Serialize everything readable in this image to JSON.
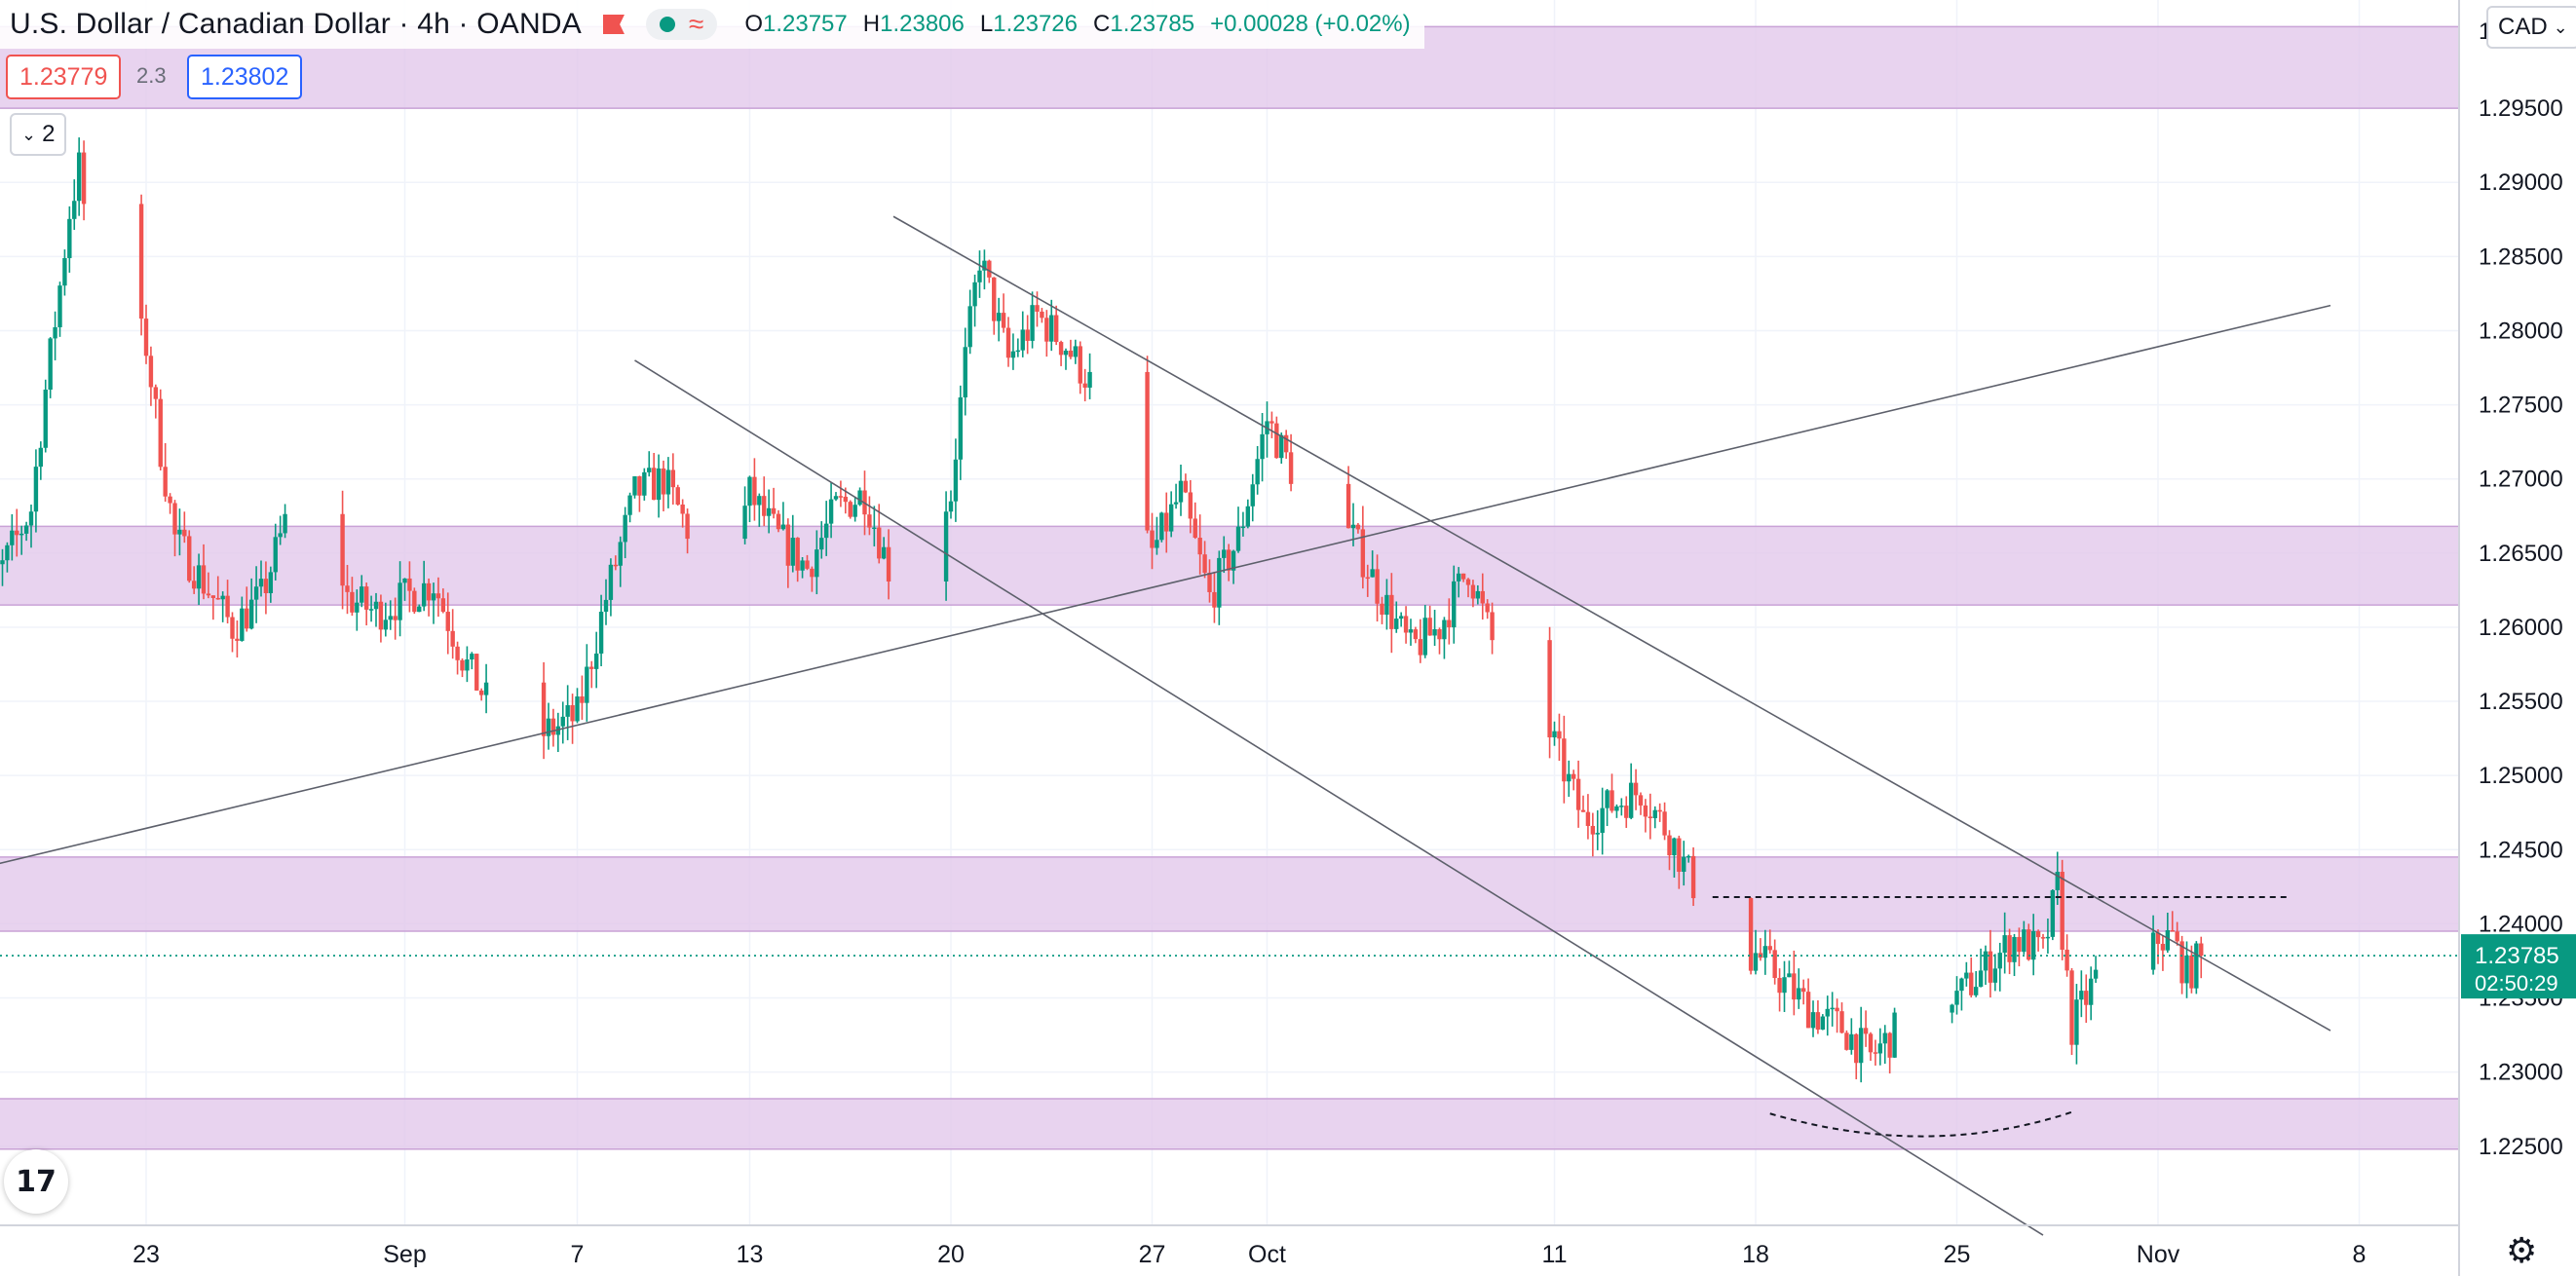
{
  "header": {
    "title": "U.S. Dollar / Canadian Dollar · 4h · OANDA",
    "ohlc": [
      {
        "key": "O",
        "value": "1.23757"
      },
      {
        "key": "H",
        "value": "1.23806"
      },
      {
        "key": "L",
        "value": "1.23726"
      },
      {
        "key": "C",
        "value": "1.23785"
      }
    ],
    "change": "+0.00028 (+0.02%)",
    "sell_price": "1.23779",
    "spread": "2.3",
    "buy_price": "1.23802",
    "indicators_count": "2",
    "currency": "CAD",
    "icons": {
      "flag": "flag-icon",
      "status": "dot-icon",
      "toggle": "wave-icon",
      "collapse": "chevron-down-icon",
      "logo": "tradingview-logo",
      "settings": "gear-icon"
    }
  },
  "colors": {
    "up": "#089981",
    "down": "#f05350",
    "zone": "#e1c6ea",
    "grid": "#f0f3fa",
    "trend": "#5d606b"
  },
  "current": {
    "price_label": "1.23785",
    "countdown": "02:50:29"
  },
  "chart_data": {
    "type": "candlestick",
    "symbol": "USDCAD",
    "interval": "4h",
    "y_axis": {
      "ticks": [
        "1.22500",
        "1.23000",
        "1.23500",
        "1.24000",
        "1.24500",
        "1.25000",
        "1.25500",
        "1.26000",
        "1.26500",
        "1.27000",
        "1.27500",
        "1.28000",
        "1.28500",
        "1.29000",
        "1.29500"
      ],
      "partial_top_tick": "1.",
      "range": [
        1.2194,
        1.3023
      ]
    },
    "x_axis": {
      "ticks": [
        "23",
        "Sep",
        "7",
        "13",
        "20",
        "27",
        "Oct",
        "11",
        "18",
        "25",
        "Nov",
        "8"
      ],
      "tick_dates": [
        "2021-08-23",
        "2021-09-01",
        "2021-09-07",
        "2021-09-13",
        "2021-09-20",
        "2021-09-27",
        "2021-10-01",
        "2021-10-11",
        "2021-10-18",
        "2021-10-25",
        "2021-11-01",
        "2021-11-08"
      ]
    },
    "keypoints": [
      [
        "2021-08-17 00:00",
        1.262
      ],
      [
        "2021-08-18 00:00",
        1.264
      ],
      [
        "2021-08-19 00:00",
        1.268
      ],
      [
        "2021-08-19 12:00",
        1.276
      ],
      [
        "2021-08-20 00:00",
        1.283
      ],
      [
        "2021-08-20 08:00",
        1.288
      ],
      [
        "2021-08-20 16:00",
        1.291
      ],
      [
        "2021-08-21 00:00",
        1.286
      ],
      [
        "2021-08-23 00:00",
        1.279
      ],
      [
        "2021-08-23 12:00",
        1.272
      ],
      [
        "2021-08-24 00:00",
        1.266
      ],
      [
        "2021-08-25 00:00",
        1.263
      ],
      [
        "2021-08-26 00:00",
        1.26
      ],
      [
        "2021-08-27 00:00",
        1.262
      ],
      [
        "2021-08-28 00:00",
        1.268
      ],
      [
        "2021-08-29 00:00",
        1.27
      ],
      [
        "2021-08-30 00:00",
        1.262
      ],
      [
        "2021-08-31 00:00",
        1.261
      ],
      [
        "2021-09-01 00:00",
        1.262
      ],
      [
        "2021-09-02 00:00",
        1.263
      ],
      [
        "2021-09-03 00:00",
        1.258
      ],
      [
        "2021-09-04 00:00",
        1.2545
      ],
      [
        "2021-09-05 00:00",
        1.252
      ],
      [
        "2021-09-06 00:00",
        1.253
      ],
      [
        "2021-09-07 00:00",
        1.254
      ],
      [
        "2021-09-08 00:00",
        1.262
      ],
      [
        "2021-09-09 00:00",
        1.269
      ],
      [
        "2021-09-10 00:00",
        1.27
      ],
      [
        "2021-09-11 00:00",
        1.266
      ],
      [
        "2021-09-12 00:00",
        1.262
      ],
      [
        "2021-09-13 00:00",
        1.269
      ],
      [
        "2021-09-14 00:00",
        1.266
      ],
      [
        "2021-09-15 00:00",
        1.264
      ],
      [
        "2021-09-16 00:00",
        1.268
      ],
      [
        "2021-09-17 00:00",
        1.269
      ],
      [
        "2021-09-18 00:00",
        1.263
      ],
      [
        "2021-09-19 00:00",
        1.266
      ],
      [
        "2021-09-20 00:00",
        1.269
      ],
      [
        "2021-09-20 12:00",
        1.278
      ],
      [
        "2021-09-21 00:00",
        1.285
      ],
      [
        "2021-09-22 00:00",
        1.278
      ],
      [
        "2021-09-23 00:00",
        1.281
      ],
      [
        "2021-09-24 00:00",
        1.279
      ],
      [
        "2021-09-25 00:00",
        1.276
      ],
      [
        "2021-09-26 00:00",
        1.268
      ],
      [
        "2021-09-27 00:00",
        1.265
      ],
      [
        "2021-09-28 00:00",
        1.269
      ],
      [
        "2021-09-29 00:00",
        1.262
      ],
      [
        "2021-09-30 00:00",
        1.266
      ],
      [
        "2021-09-30 12:00",
        1.27
      ],
      [
        "2021-10-01 00:00",
        1.274
      ],
      [
        "2021-10-02 00:00",
        1.27
      ],
      [
        "2021-10-04 00:00",
        1.266
      ],
      [
        "2021-10-05 00:00",
        1.262
      ],
      [
        "2021-10-06 00:00",
        1.2585
      ],
      [
        "2021-10-07 00:00",
        1.26
      ],
      [
        "2021-10-08 00:00",
        1.264
      ],
      [
        "2021-10-09 00:00",
        1.258
      ],
      [
        "2021-10-10 00:00",
        1.257
      ],
      [
        "2021-10-11 00:00",
        1.252
      ],
      [
        "2021-10-12 00:00",
        1.247
      ],
      [
        "2021-10-13 00:00",
        1.248
      ],
      [
        "2021-10-14 00:00",
        1.249
      ],
      [
        "2021-10-15 00:00",
        1.246
      ],
      [
        "2021-10-16 00:00",
        1.242
      ],
      [
        "2021-10-16 12:00",
        1.238
      ],
      [
        "2021-10-17 00:00",
        1.236
      ],
      [
        "2021-10-18 00:00",
        1.238
      ],
      [
        "2021-10-19 00:00",
        1.236
      ],
      [
        "2021-10-20 00:00",
        1.234
      ],
      [
        "2021-10-21 00:00",
        1.233
      ],
      [
        "2021-10-22 00:00",
        1.231
      ],
      [
        "2021-10-23 00:00",
        1.233
      ],
      [
        "2021-10-24 00:00",
        1.237
      ],
      [
        "2021-10-25 00:00",
        1.235
      ],
      [
        "2021-10-26 00:00",
        1.237
      ],
      [
        "2021-10-27 00:00",
        1.239
      ],
      [
        "2021-10-28 00:00",
        1.238
      ],
      [
        "2021-10-28 12:00",
        1.2425
      ],
      [
        "2021-10-29 00:00",
        1.233
      ],
      [
        "2021-10-30 00:00",
        1.237
      ],
      [
        "2021-10-31 00:00",
        1.235
      ],
      [
        "2021-11-01 00:00",
        1.239
      ],
      [
        "2021-11-01 12:00",
        1.239
      ],
      [
        "2021-11-02 00:00",
        1.2365
      ],
      [
        "2021-11-02 12:00",
        1.23785
      ]
    ],
    "zones": [
      {
        "from": 1.295,
        "to": 1.3005
      },
      {
        "from": 1.2615,
        "to": 1.2668
      },
      {
        "from": 1.2395,
        "to": 1.2445
      },
      {
        "from": 1.2248,
        "to": 1.2282
      }
    ],
    "trendlines": [
      {
        "from": [
          "2021-08-13 00:00",
          1.2418
        ],
        "to": [
          "2021-11-07 00:00",
          1.2817
        ],
        "style": "solid"
      },
      {
        "from": [
          "2021-09-09 00:00",
          1.278
        ],
        "to": [
          "2021-10-28 00:00",
          1.219
        ],
        "style": "solid"
      },
      {
        "from": [
          "2021-09-18 00:00",
          1.2877
        ],
        "to": [
          "2021-11-07 00:00",
          1.2328
        ],
        "style": "solid"
      },
      {
        "from": [
          "2021-10-16 12:00",
          1.2418
        ],
        "to": [
          "2021-11-05 12:00",
          1.2418
        ],
        "style": "dashed"
      }
    ],
    "arc": {
      "from": [
        "2021-10-18 12:00",
        1.2272
      ],
      "bottom": [
        "2021-10-24 00:00",
        1.2258
      ],
      "to": [
        "2021-10-29 00:00",
        1.2273
      ],
      "style": "dashed"
    },
    "last_price": 1.23785,
    "session_high": 1.291,
    "session_low": 1.23
  }
}
